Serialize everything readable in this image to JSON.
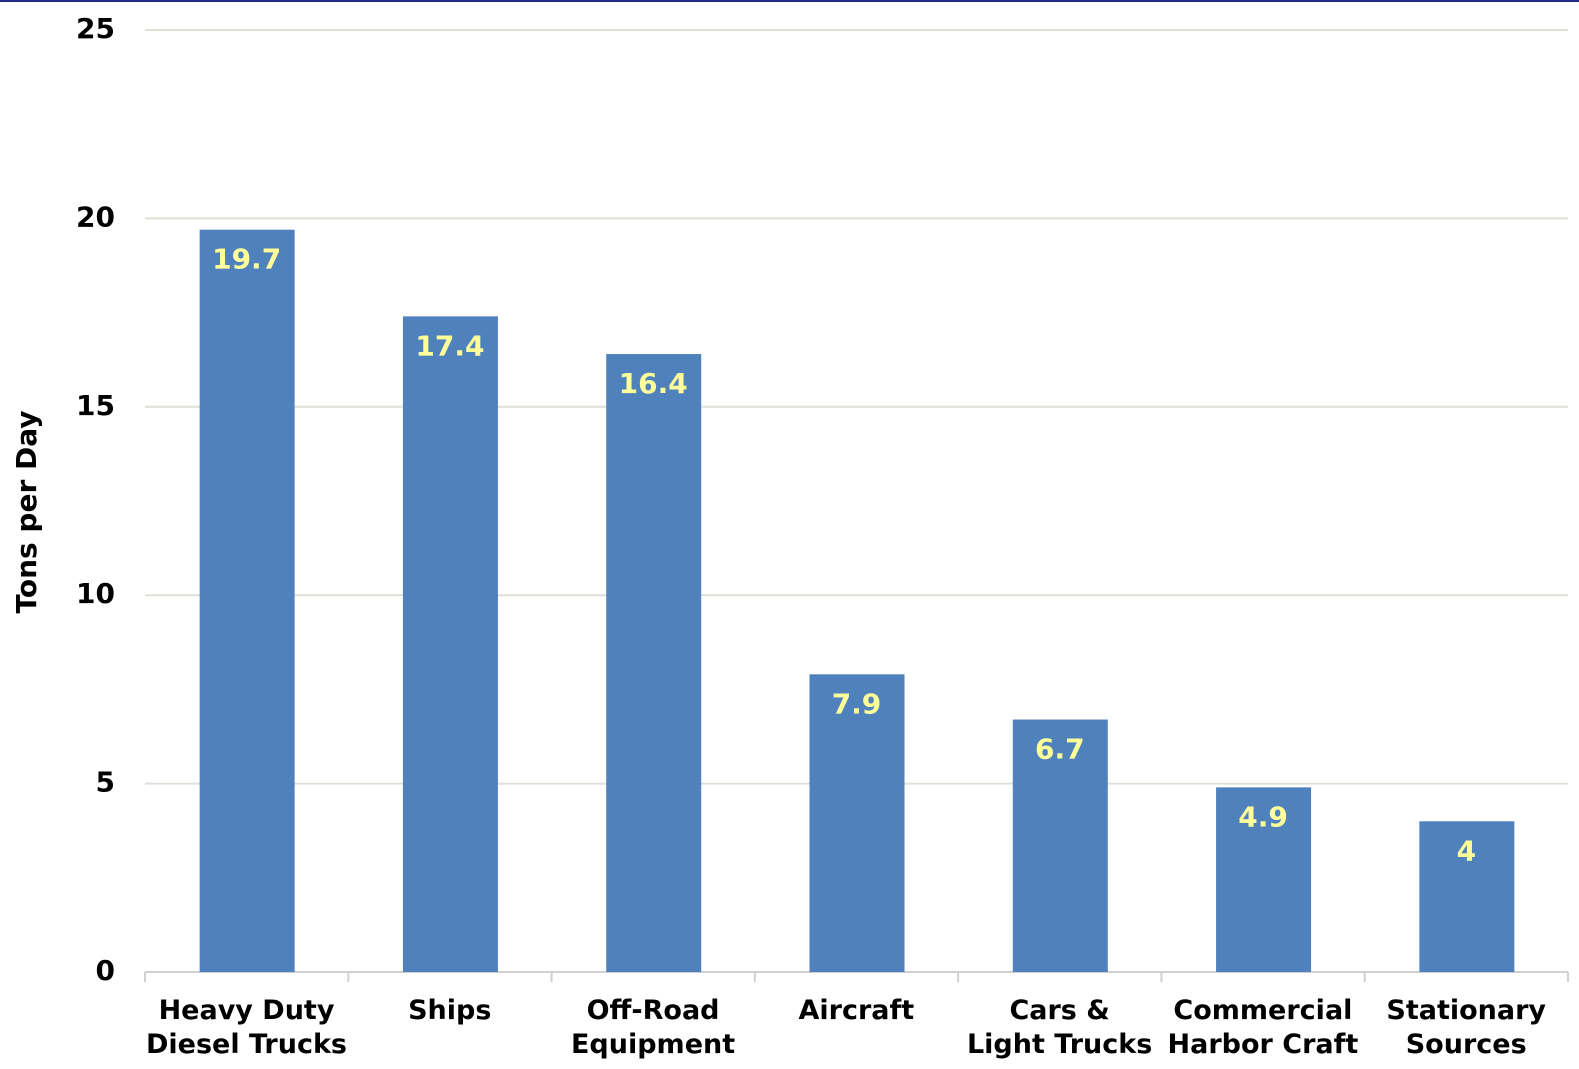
{
  "chart_data": {
    "type": "bar",
    "y_label": "Tons per Day",
    "categories": [
      "Heavy Duty\nDiesel Trucks",
      "Ships",
      "Off-Road\nEquipment",
      "Aircraft",
      "Cars &\nLight Trucks",
      "Commercial\nHarbor Craft",
      "Stationary\nSources"
    ],
    "values": [
      19.7,
      17.4,
      16.4,
      7.9,
      6.7,
      4.9,
      4
    ],
    "color": "#4f81bd",
    "value_label_color": "#ffff99",
    "ylim": [
      0,
      25
    ],
    "yticks": [
      0,
      5,
      10,
      15,
      20,
      25
    ],
    "grid": true
  }
}
